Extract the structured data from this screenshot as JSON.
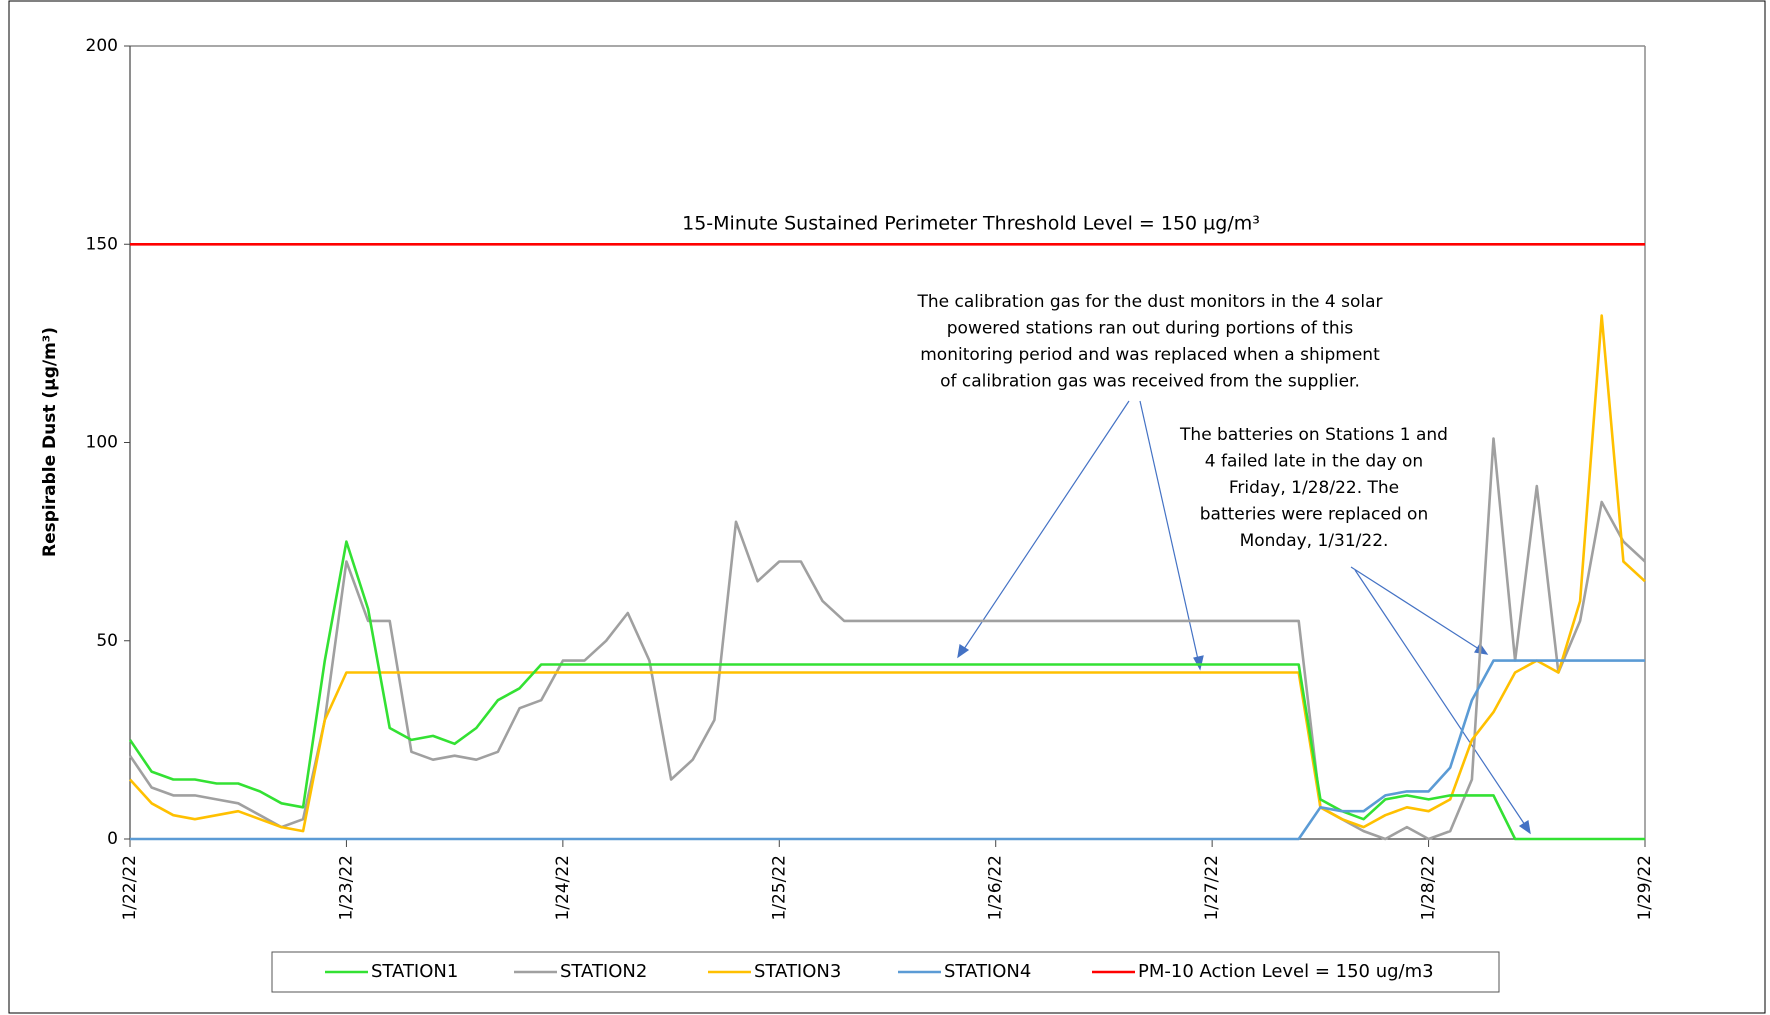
{
  "chart_data": {
    "type": "line",
    "ylabel": "Respirable Dust (µg/m³)",
    "threshold_label": "15-Minute Sustained Perimeter Threshold Level = 150 µg/m³",
    "notes": [
      [
        "The calibration gas for the dust monitors in the 4 solar",
        "powered stations ran out during portions of this",
        "monitoring period and was replaced when a shipment",
        "of calibration gas was received from the supplier."
      ],
      [
        "The batteries on Stations 1 and",
        "4 failed late in the day on",
        "Friday, 1/28/22.  The",
        "batteries were replaced on",
        "Monday, 1/31/22."
      ]
    ],
    "xlim": [
      0,
      7
    ],
    "xticks": [
      {
        "value": 0,
        "label": "1/22/22"
      },
      {
        "value": 1,
        "label": "1/23/22"
      },
      {
        "value": 2,
        "label": "1/24/22"
      },
      {
        "value": 3,
        "label": "1/25/22"
      },
      {
        "value": 4,
        "label": "1/26/22"
      },
      {
        "value": 5,
        "label": "1/27/22"
      },
      {
        "value": 6,
        "label": "1/28/22"
      },
      {
        "value": 7,
        "label": "1/29/22"
      }
    ],
    "ylim": [
      0,
      200
    ],
    "yticks": [
      0,
      50,
      100,
      150,
      200
    ],
    "x": [
      0.0,
      0.1,
      0.2,
      0.3,
      0.4,
      0.5,
      0.6,
      0.7,
      0.8,
      0.9,
      1.0,
      1.1,
      1.2,
      1.3,
      1.4,
      1.5,
      1.6,
      1.7,
      1.8,
      1.9,
      2.0,
      2.1,
      2.2,
      2.3,
      2.4,
      2.5,
      2.6,
      2.7,
      2.8,
      2.9,
      3.0,
      3.1,
      3.2,
      3.3,
      3.4,
      3.5,
      3.6,
      3.7,
      3.8,
      3.9,
      4.0,
      4.1,
      4.2,
      4.3,
      4.4,
      4.5,
      4.6,
      4.7,
      4.8,
      4.9,
      5.0,
      5.1,
      5.2,
      5.3,
      5.4,
      5.5,
      5.6,
      5.7,
      5.8,
      5.9,
      6.0,
      6.1,
      6.2,
      6.3,
      6.4,
      6.5,
      6.6,
      6.7,
      6.8,
      6.9,
      7.0
    ],
    "series": [
      {
        "name": "STATION1",
        "color": "#33e133",
        "values": [
          25,
          17,
          15,
          15,
          14,
          14,
          12,
          9,
          8,
          45,
          75,
          58,
          28,
          25,
          26,
          24,
          28,
          35,
          38,
          44,
          44,
          44,
          44,
          44,
          44,
          44,
          44,
          44,
          44,
          44,
          44,
          44,
          44,
          44,
          44,
          44,
          44,
          44,
          44,
          44,
          44,
          44,
          44,
          44,
          44,
          44,
          44,
          44,
          44,
          44,
          44,
          44,
          44,
          44,
          44,
          10,
          7,
          5,
          10,
          11,
          10,
          11,
          11,
          11,
          0,
          0,
          0,
          0,
          0,
          0,
          0
        ]
      },
      {
        "name": "STATION2",
        "color": "#a0a0a0",
        "values": [
          21,
          13,
          11,
          11,
          10,
          9,
          6,
          3,
          5,
          30,
          70,
          55,
          55,
          22,
          20,
          21,
          20,
          22,
          33,
          35,
          45,
          45,
          50,
          57,
          45,
          15,
          20,
          30,
          80,
          65,
          70,
          70,
          60,
          55,
          55,
          55,
          55,
          55,
          55,
          55,
          55,
          55,
          55,
          55,
          55,
          55,
          55,
          55,
          55,
          55,
          55,
          55,
          55,
          55,
          55,
          8,
          5,
          2,
          0,
          3,
          0,
          2,
          15,
          101,
          45,
          89,
          42,
          55,
          85,
          75,
          70
        ]
      },
      {
        "name": "STATION3",
        "color": "#ffc000",
        "values": [
          15,
          9,
          6,
          5,
          6,
          7,
          5,
          3,
          2,
          30,
          42,
          42,
          42,
          42,
          42,
          42,
          42,
          42,
          42,
          42,
          42,
          42,
          42,
          42,
          42,
          42,
          42,
          42,
          42,
          42,
          42,
          42,
          42,
          42,
          42,
          42,
          42,
          42,
          42,
          42,
          42,
          42,
          42,
          42,
          42,
          42,
          42,
          42,
          42,
          42,
          42,
          42,
          42,
          42,
          42,
          8,
          5,
          3,
          6,
          8,
          7,
          10,
          25,
          32,
          42,
          45,
          42,
          60,
          132,
          70,
          65
        ]
      },
      {
        "name": "STATION4",
        "color": "#5b9bd5",
        "values": [
          0,
          0,
          0,
          0,
          0,
          0,
          0,
          0,
          0,
          0,
          0,
          0,
          0,
          0,
          0,
          0,
          0,
          0,
          0,
          0,
          0,
          0,
          0,
          0,
          0,
          0,
          0,
          0,
          0,
          0,
          0,
          0,
          0,
          0,
          0,
          0,
          0,
          0,
          0,
          0,
          0,
          0,
          0,
          0,
          0,
          0,
          0,
          0,
          0,
          0,
          0,
          0,
          0,
          0,
          0,
          8,
          7,
          7,
          11,
          12,
          12,
          18,
          35,
          45,
          45,
          45,
          45,
          45,
          45,
          45,
          45
        ]
      },
      {
        "name": "PM-10 Action Level = 150 ug/m3",
        "color": "#ff0000",
        "x": [
          0,
          7
        ],
        "values": [
          150,
          150
        ]
      }
    ]
  }
}
